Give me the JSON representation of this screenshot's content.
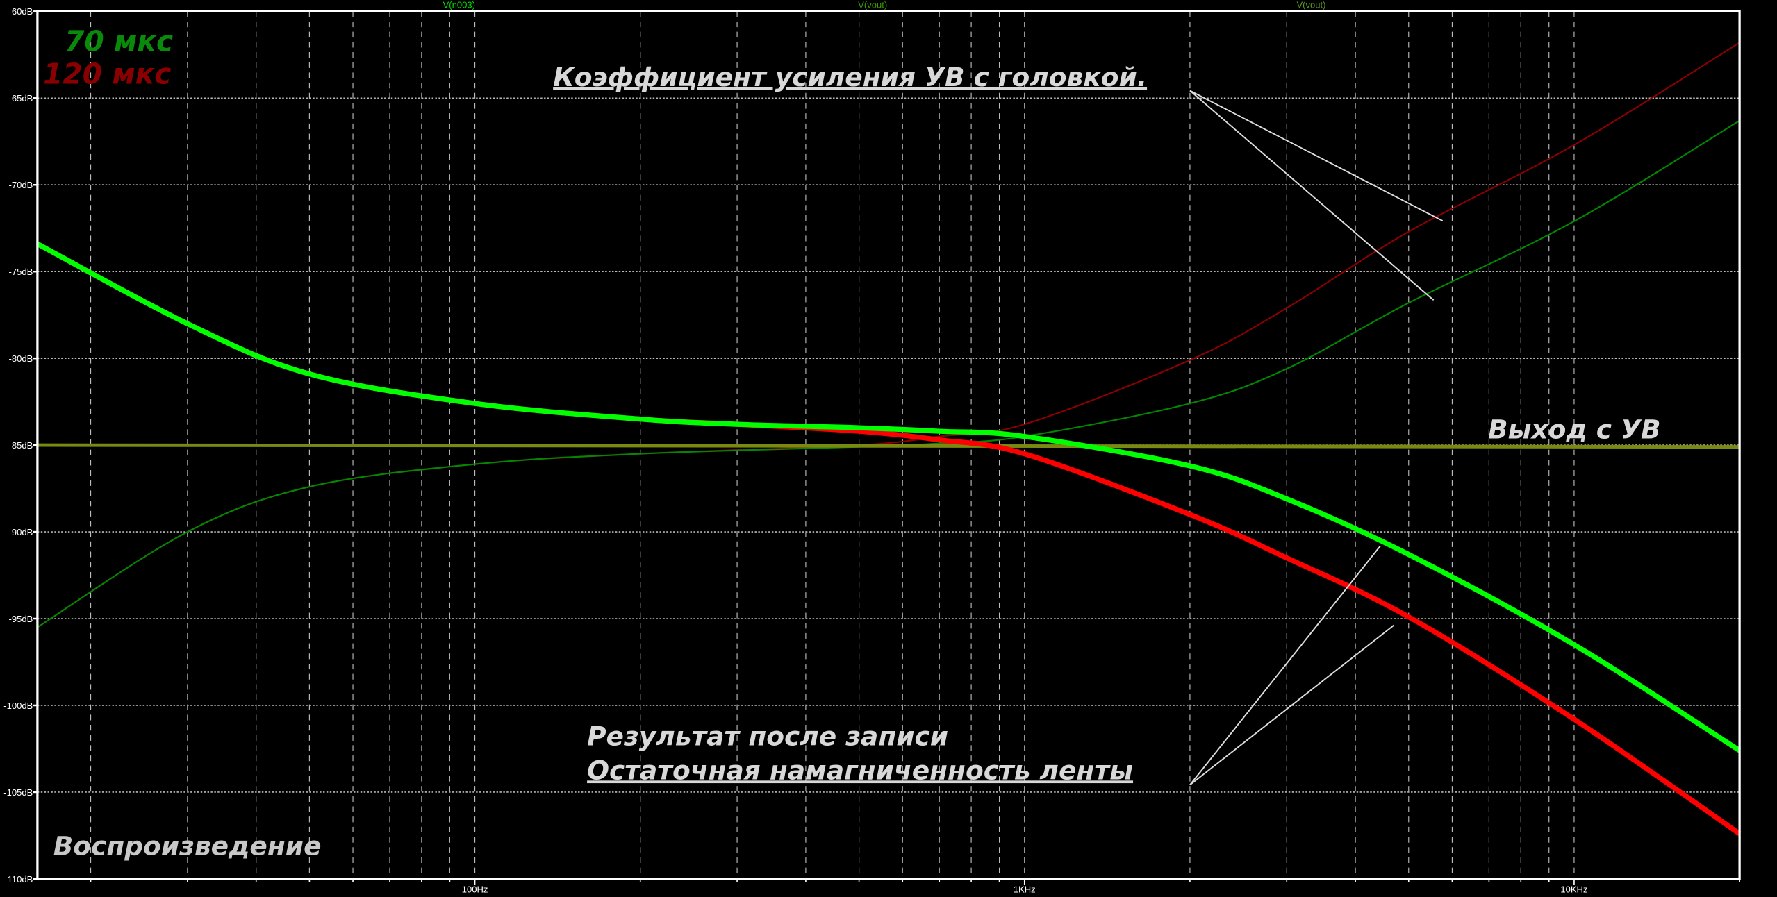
{
  "chart_data": {
    "type": "line",
    "x_scale": "log",
    "xlim": [
      16,
      20000
    ],
    "ylim": [
      -110,
      -60
    ],
    "grid": true,
    "x_ticks": [
      {
        "value": 100,
        "label": "100Hz"
      },
      {
        "value": 1000,
        "label": "1KHz"
      },
      {
        "value": 10000,
        "label": "10KHz"
      }
    ],
    "y_ticks": [
      {
        "value": -60,
        "label": "-60dB"
      },
      {
        "value": -65,
        "label": "-65dB"
      },
      {
        "value": -70,
        "label": "-70dB"
      },
      {
        "value": -75,
        "label": "-75dB"
      },
      {
        "value": -80,
        "label": "-80dB"
      },
      {
        "value": -85,
        "label": "-85dB"
      },
      {
        "value": -90,
        "label": "-90dB"
      },
      {
        "value": -95,
        "label": "-95dB"
      },
      {
        "value": -100,
        "label": "-100dB"
      },
      {
        "value": -105,
        "label": "-105dB"
      },
      {
        "value": -110,
        "label": "-110dB"
      }
    ],
    "trace_labels": [
      {
        "text": "V(n003)",
        "color": "#00e000"
      },
      {
        "text": "V(vout)",
        "color": "#3a9a00"
      },
      {
        "text": "V(vout)",
        "color": "#5a9a20"
      }
    ],
    "series": [
      {
        "key": "preamp-gain-120us",
        "color": "#8b0000",
        "width": "thin",
        "x": [
          16,
          30,
          50,
          100,
          200,
          500,
          700,
          1000,
          2000,
          3000,
          5000,
          10000,
          20000
        ],
        "y": [
          -95.5,
          -90.0,
          -87.4,
          -86.1,
          -85.5,
          -85.0,
          -84.5,
          -83.8,
          -80.1,
          -77.1,
          -72.7,
          -67.7,
          -61.8
        ]
      },
      {
        "key": "preamp-gain-70us",
        "color": "#008800",
        "width": "thin",
        "x": [
          16,
          30,
          50,
          100,
          200,
          500,
          700,
          1000,
          2000,
          3000,
          5000,
          10000,
          20000
        ],
        "y": [
          -95.5,
          -90.0,
          -87.4,
          -86.1,
          -85.5,
          -85.1,
          -84.9,
          -84.5,
          -82.6,
          -80.6,
          -76.8,
          -72.1,
          -66.3
        ]
      },
      {
        "key": "preamp-output",
        "color": "#7a8a10",
        "width": "medium",
        "x": [
          16,
          20000
        ],
        "y": [
          -85.0,
          -85.1
        ]
      },
      {
        "key": "result-after-recording-120us",
        "color": "#ff0000",
        "width": "thick",
        "x": [
          16,
          30,
          50,
          100,
          200,
          300,
          500,
          700,
          1000,
          2000,
          3000,
          5000,
          10000,
          20000
        ],
        "y": [
          -73.4,
          -78.0,
          -80.9,
          -82.6,
          -83.5,
          -83.8,
          -84.2,
          -84.7,
          -85.5,
          -89.0,
          -91.5,
          -94.9,
          -100.8,
          -107.4
        ]
      },
      {
        "key": "result-after-recording-70us",
        "color": "#00ff00",
        "width": "thick",
        "x": [
          16,
          30,
          50,
          100,
          200,
          300,
          500,
          700,
          1000,
          2000,
          3000,
          5000,
          10000,
          20000
        ],
        "y": [
          -73.4,
          -78.0,
          -80.9,
          -82.6,
          -83.5,
          -83.8,
          -84.0,
          -84.2,
          -84.5,
          -86.2,
          -88.1,
          -91.3,
          -96.5,
          -102.6
        ]
      }
    ],
    "annotations": {
      "legend_70": {
        "text": "70 мкс",
        "color": "#0a8a0a"
      },
      "legend_120": {
        "text": "120 мкс",
        "color": "#8a0000"
      },
      "preamp_gain": "Коэффициент усиления УВ с головкой.",
      "preamp_output": "Выход с УВ",
      "result_line1": "Результат после записи",
      "result_line2": "Остаточная намагниченность ленты",
      "playback": "Воспроизведение"
    }
  }
}
